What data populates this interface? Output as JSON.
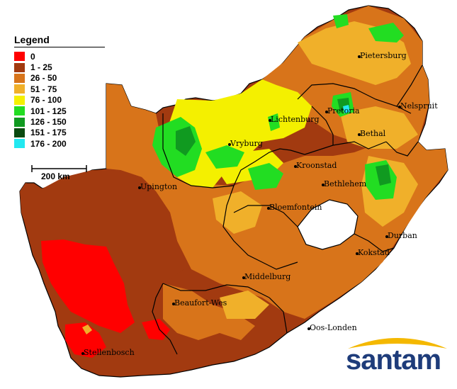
{
  "legend": {
    "title": "Legend",
    "items": [
      {
        "label": "0",
        "color": "#ff0000"
      },
      {
        "label": "1 - 25",
        "color": "#a23a10"
      },
      {
        "label": "26 - 50",
        "color": "#d8741a"
      },
      {
        "label": "51 - 75",
        "color": "#f0b02a"
      },
      {
        "label": "76 - 100",
        "color": "#f4f000"
      },
      {
        "label": "101 - 125",
        "color": "#22dd22"
      },
      {
        "label": "126 - 150",
        "color": "#109a20"
      },
      {
        "label": "151 - 175",
        "color": "#0a4a10"
      },
      {
        "label": "176 - 200",
        "color": "#22e8f0"
      }
    ]
  },
  "scale": {
    "label": "200 km"
  },
  "cities": [
    {
      "name": "Pietersburg"
    },
    {
      "name": "Pretoria"
    },
    {
      "name": "Nelspruit"
    },
    {
      "name": "Lichtenburg"
    },
    {
      "name": "Bethal"
    },
    {
      "name": "Vryburg"
    },
    {
      "name": "Kroonstad"
    },
    {
      "name": "Upington"
    },
    {
      "name": "Bethlehem"
    },
    {
      "name": "Bloemfontein"
    },
    {
      "name": "Durban"
    },
    {
      "name": "Kokstad"
    },
    {
      "name": "Middelburg"
    },
    {
      "name": "Beaufort-Wes"
    },
    {
      "name": "Oos-Londen"
    },
    {
      "name": "Stellenbosch"
    }
  ],
  "logo": {
    "text": "santam",
    "primary_color": "#1e3c7a",
    "accent_color": "#f4b800"
  }
}
